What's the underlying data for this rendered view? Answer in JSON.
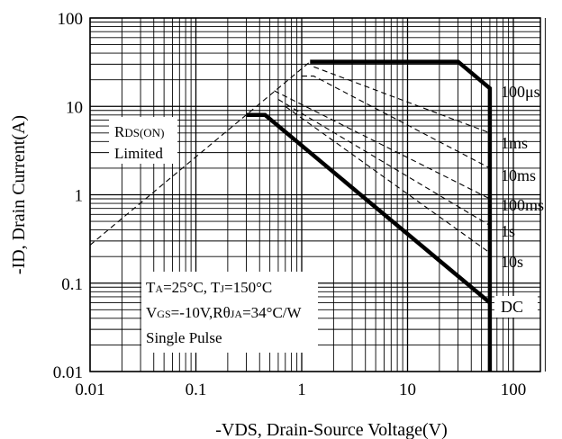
{
  "chart_data": {
    "type": "line",
    "title": "",
    "xlabel": "-VDS, Drain-Source Voltage(V)",
    "ylabel": "-ID, Drain Current(A)",
    "x_scale": "log",
    "y_scale": "log",
    "xlim": [
      0.01,
      300
    ],
    "ylim": [
      0.01,
      100
    ],
    "grid": true,
    "x_ticks": [
      "0.01",
      "0.1",
      "1",
      "10",
      "100"
    ],
    "y_ticks": [
      "0.01",
      "0.1",
      "1",
      "10",
      "100"
    ],
    "series": [
      {
        "name": "RDS(ON) Limited",
        "style": "dashed",
        "x": [
          0.01,
          1.2
        ],
        "y": [
          0.27,
          32
        ]
      },
      {
        "name": "100μs",
        "style": "solid-bold",
        "x": [
          1.2,
          30,
          60,
          60
        ],
        "y": [
          32,
          32,
          16,
          0.01
        ]
      },
      {
        "name": "1ms",
        "style": "dashed",
        "x": [
          1.3,
          60
        ],
        "y": [
          28,
          5
        ]
      },
      {
        "name": "10ms",
        "style": "dashed",
        "x": [
          1.0,
          1.3,
          60
        ],
        "y": [
          22,
          22,
          2
        ]
      },
      {
        "name": "100ms",
        "style": "dashed",
        "x": [
          0.55,
          60
        ],
        "y": [
          15,
          0.9
        ]
      },
      {
        "name": "1s",
        "style": "dashed",
        "x": [
          0.6,
          60
        ],
        "y": [
          12,
          0.45
        ]
      },
      {
        "name": "10s",
        "style": "dashed",
        "x": [
          0.7,
          60
        ],
        "y": [
          10,
          0.22
        ]
      },
      {
        "name": "DC",
        "style": "solid-bold",
        "x": [
          0.3,
          0.45,
          60
        ],
        "y": [
          8,
          8,
          0.06
        ]
      }
    ],
    "curve_labels": [
      {
        "text": "100μs"
      },
      {
        "text": "1ms"
      },
      {
        "text": "10ms"
      },
      {
        "text": "100ms"
      },
      {
        "text": "1s"
      },
      {
        "text": "10s"
      },
      {
        "text": "DC"
      }
    ],
    "rds_label": {
      "main": "R",
      "sub": "DS(ON)",
      "line2": "Limited"
    },
    "conditions": {
      "line1": {
        "t_a": "T",
        "t_a_sub": "A",
        "t_a_val": "=25°C, ",
        "t_j": "T",
        "t_j_sub": "J",
        "t_j_val": "=150°C"
      },
      "line2": {
        "v": "V",
        "v_sub": "GS",
        "v_val": "=-10V,R",
        "theta": "θ",
        "theta_sub": "JA",
        "theta_val": "=34°C/W"
      },
      "line3": "Single Pulse"
    }
  }
}
